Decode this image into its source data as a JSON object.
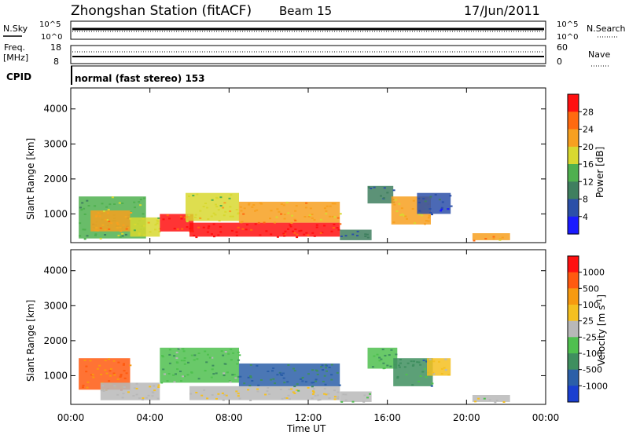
{
  "header": {
    "station": "Zhongshan Station (fitACF)",
    "beam": "Beam 15",
    "date": "17/Jun/2011"
  },
  "strip_labels": {
    "nsky": "N.Sky",
    "nsearch": "N.Search",
    "freq_top": "Freq.",
    "freq_unit": "[MHz]",
    "nave": "Nave",
    "cpid": "CPID",
    "cpid_text": "normal (fast stereo) 153",
    "noise_left_ticks": [
      "10^5",
      "10^0"
    ],
    "noise_right_ticks": [
      "10^5",
      "10^0"
    ],
    "freq_left_ticks": [
      "18",
      "8"
    ],
    "nave_right_ticks": [
      "60",
      "0"
    ]
  },
  "colors": {
    "power_scale": [
      "#1a1aff",
      "#2b4fa8",
      "#3f7f5f",
      "#4fb04f",
      "#d8d830",
      "#f7a020",
      "#ff6a10",
      "#ff1010"
    ],
    "velocity_scale": [
      "#ff1010",
      "#ff5a10",
      "#f79a10",
      "#f5c020",
      "#b8b8b8",
      "#4fc04f",
      "#3f8f5f",
      "#2b5fa8",
      "#1a3fd0"
    ]
  },
  "chart_data": [
    {
      "type": "heatmap",
      "title": "",
      "xlabel": "Time UT",
      "ylabel": "Slant Range [km]",
      "x_ticks": [
        "00:00",
        "04:00",
        "08:00",
        "12:00",
        "16:00",
        "20:00",
        "00:00"
      ],
      "y_ticks": [
        "1000",
        "2000",
        "3000",
        "4000"
      ],
      "xlim_hours": [
        0,
        24
      ],
      "ylim_km": [
        180,
        4600
      ],
      "colorbar": {
        "label": "Power [dB]",
        "ticks": [
          "4",
          "8",
          "12",
          "16",
          "20",
          "24",
          "28"
        ],
        "range": [
          0,
          32
        ]
      },
      "regions": [
        {
          "t": [
            0.4,
            3.8
          ],
          "r": [
            300,
            1500
          ],
          "value": 14
        },
        {
          "t": [
            1.0,
            3.0
          ],
          "r": [
            500,
            1100
          ],
          "value": 22
        },
        {
          "t": [
            3.0,
            4.5
          ],
          "r": [
            350,
            900
          ],
          "value": 18
        },
        {
          "t": [
            4.5,
            6.2
          ],
          "r": [
            500,
            1000
          ],
          "value": 28
        },
        {
          "t": [
            5.8,
            8.5
          ],
          "r": [
            800,
            1600
          ],
          "value": 18
        },
        {
          "t": [
            6.0,
            13.6
          ],
          "r": [
            350,
            750
          ],
          "value": 30
        },
        {
          "t": [
            8.5,
            13.6
          ],
          "r": [
            750,
            1350
          ],
          "value": 22
        },
        {
          "t": [
            13.6,
            15.2
          ],
          "r": [
            250,
            550
          ],
          "value": 8
        },
        {
          "t": [
            15.0,
            16.3
          ],
          "r": [
            1300,
            1800
          ],
          "value": 8
        },
        {
          "t": [
            16.2,
            18.2
          ],
          "r": [
            700,
            1500
          ],
          "value": 20
        },
        {
          "t": [
            17.5,
            19.2
          ],
          "r": [
            1000,
            1600
          ],
          "value": 6
        },
        {
          "t": [
            20.3,
            22.2
          ],
          "r": [
            250,
            450
          ],
          "value": 22
        }
      ]
    },
    {
      "type": "heatmap",
      "title": "",
      "xlabel": "Time UT",
      "ylabel": "Slant Range [km]",
      "x_ticks": [
        "00:00",
        "04:00",
        "08:00",
        "12:00",
        "16:00",
        "20:00",
        "00:00"
      ],
      "y_ticks": [
        "1000",
        "2000",
        "3000",
        "4000"
      ],
      "xlim_hours": [
        0,
        24
      ],
      "ylim_km": [
        180,
        4600
      ],
      "colorbar": {
        "label": "Velocity [m s-1]",
        "ticks": [
          "1000",
          "500",
          "100",
          "25",
          "-25",
          "-100",
          "-500",
          "-1000"
        ],
        "range": [
          -1250,
          1250
        ]
      },
      "regions": [
        {
          "t": [
            0.4,
            3.0
          ],
          "r": [
            600,
            1500
          ],
          "value": 700
        },
        {
          "t": [
            1.5,
            4.5
          ],
          "r": [
            300,
            800
          ],
          "value": 80
        },
        {
          "t": [
            4.5,
            8.5
          ],
          "r": [
            800,
            1800
          ],
          "value": -300
        },
        {
          "t": [
            6.0,
            13.6
          ],
          "r": [
            300,
            700
          ],
          "value": 60
        },
        {
          "t": [
            8.5,
            13.6
          ],
          "r": [
            700,
            1350
          ],
          "value": -700
        },
        {
          "t": [
            13.6,
            15.2
          ],
          "r": [
            250,
            550
          ],
          "value": -80
        },
        {
          "t": [
            15.0,
            16.5
          ],
          "r": [
            1200,
            1800
          ],
          "value": -400
        },
        {
          "t": [
            16.3,
            18.3
          ],
          "r": [
            700,
            1500
          ],
          "value": -500
        },
        {
          "t": [
            18.0,
            19.2
          ],
          "r": [
            1000,
            1500
          ],
          "value": 150
        },
        {
          "t": [
            20.3,
            22.2
          ],
          "r": [
            250,
            450
          ],
          "value": 10
        }
      ]
    }
  ]
}
